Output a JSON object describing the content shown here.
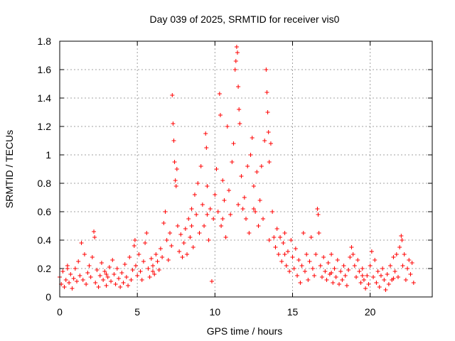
{
  "chart_data": {
    "type": "scatter",
    "title": "Day 039 of 2025, SRMTID for receiver vis0",
    "xlabel": "GPS time / hours",
    "ylabel": "SRMTID / TECUs",
    "xlim": [
      0,
      24
    ],
    "ylim": [
      0,
      1.8
    ],
    "xticks": [
      0,
      5,
      10,
      15,
      20
    ],
    "yticks": [
      0,
      0.2,
      0.4,
      0.6,
      0.8,
      1.0,
      1.2,
      1.4,
      1.6,
      1.8
    ],
    "xtick_labels": [
      "0",
      "5",
      "10",
      "15",
      "20"
    ],
    "ytick_labels": [
      "0",
      "0.2",
      "0.4",
      "0.6",
      "0.8",
      "1",
      "1.2",
      "1.4",
      "1.6",
      "1.8"
    ],
    "grid": true,
    "marker": "+",
    "color": "#ff0000",
    "series": [
      {
        "name": "SRMTID",
        "points": [
          [
            0.0,
            0.14
          ],
          [
            0.1,
            0.09
          ],
          [
            0.2,
            0.18
          ],
          [
            0.3,
            0.07
          ],
          [
            0.4,
            0.12
          ],
          [
            0.5,
            0.22
          ],
          [
            0.6,
            0.1
          ],
          [
            0.7,
            0.16
          ],
          [
            0.8,
            0.06
          ],
          [
            0.9,
            0.13
          ],
          [
            1.0,
            0.2
          ],
          [
            1.1,
            0.11
          ],
          [
            1.2,
            0.25
          ],
          [
            1.3,
            0.15
          ],
          [
            1.4,
            0.38
          ],
          [
            1.5,
            0.12
          ],
          [
            1.6,
            0.3
          ],
          [
            1.7,
            0.09
          ],
          [
            1.8,
            0.17
          ],
          [
            1.9,
            0.22
          ],
          [
            2.0,
            0.14
          ],
          [
            2.1,
            0.28
          ],
          [
            2.2,
            0.46
          ],
          [
            2.25,
            0.42
          ],
          [
            2.3,
            0.1
          ],
          [
            2.4,
            0.19
          ],
          [
            2.5,
            0.07
          ],
          [
            2.6,
            0.15
          ],
          [
            2.7,
            0.24
          ],
          [
            2.8,
            0.12
          ],
          [
            2.9,
            0.18
          ],
          [
            3.0,
            0.08
          ],
          [
            3.1,
            0.14
          ],
          [
            3.2,
            0.21
          ],
          [
            3.3,
            0.11
          ],
          [
            3.4,
            0.26
          ],
          [
            3.5,
            0.16
          ],
          [
            3.6,
            0.09
          ],
          [
            3.7,
            0.2
          ],
          [
            3.8,
            0.13
          ],
          [
            3.9,
            0.07
          ],
          [
            4.0,
            0.17
          ],
          [
            4.1,
            0.1
          ],
          [
            4.2,
            0.23
          ],
          [
            4.3,
            0.14
          ],
          [
            4.4,
            0.08
          ],
          [
            4.5,
            0.28
          ],
          [
            4.6,
            0.12
          ],
          [
            4.7,
            0.19
          ],
          [
            4.8,
            0.36
          ],
          [
            4.85,
            0.4
          ],
          [
            4.9,
            0.22
          ],
          [
            5.0,
            0.15
          ],
          [
            5.1,
            0.3
          ],
          [
            5.2,
            0.18
          ],
          [
            5.3,
            0.12
          ],
          [
            5.4,
            0.25
          ],
          [
            5.5,
            0.38
          ],
          [
            5.6,
            0.45
          ],
          [
            5.7,
            0.2
          ],
          [
            5.8,
            0.14
          ],
          [
            5.9,
            0.27
          ],
          [
            6.0,
            0.22
          ],
          [
            6.1,
            0.16
          ],
          [
            6.2,
            0.3
          ],
          [
            6.3,
            0.25
          ],
          [
            6.4,
            0.19
          ],
          [
            6.5,
            0.34
          ],
          [
            6.6,
            0.28
          ],
          [
            6.7,
            0.52
          ],
          [
            6.8,
            0.6
          ],
          [
            6.9,
            0.4
          ],
          [
            7.0,
            0.26
          ],
          [
            7.1,
            0.45
          ],
          [
            7.2,
            0.36
          ],
          [
            7.25,
            1.42
          ],
          [
            7.3,
            1.22
          ],
          [
            7.35,
            1.1
          ],
          [
            7.4,
            0.95
          ],
          [
            7.45,
            0.82
          ],
          [
            7.5,
            0.78
          ],
          [
            7.55,
            0.9
          ],
          [
            7.6,
            0.5
          ],
          [
            7.7,
            0.32
          ],
          [
            7.8,
            0.44
          ],
          [
            7.9,
            0.28
          ],
          [
            8.0,
            0.38
          ],
          [
            8.1,
            0.48
          ],
          [
            8.2,
            0.3
          ],
          [
            8.3,
            0.55
          ],
          [
            8.4,
            0.42
          ],
          [
            8.5,
            0.62
          ],
          [
            8.6,
            0.35
          ],
          [
            8.7,
            0.72
          ],
          [
            8.8,
            0.58
          ],
          [
            8.9,
            0.8
          ],
          [
            9.0,
            0.45
          ],
          [
            9.1,
            0.92
          ],
          [
            9.2,
            0.65
          ],
          [
            9.3,
            0.5
          ],
          [
            9.4,
            1.15
          ],
          [
            9.45,
            1.05
          ],
          [
            9.5,
            0.78
          ],
          [
            9.6,
            0.4
          ],
          [
            9.7,
            0.62
          ],
          [
            9.8,
            0.11
          ],
          [
            9.9,
            0.55
          ],
          [
            10.0,
            0.72
          ],
          [
            10.1,
            0.9
          ],
          [
            10.2,
            0.6
          ],
          [
            10.3,
            1.43
          ],
          [
            10.35,
            1.28
          ],
          [
            10.4,
            0.5
          ],
          [
            10.5,
            0.82
          ],
          [
            10.6,
            0.68
          ],
          [
            10.7,
            0.42
          ],
          [
            10.8,
            1.2
          ],
          [
            10.9,
            0.75
          ],
          [
            11.0,
            0.58
          ],
          [
            11.1,
            0.95
          ],
          [
            11.2,
            1.08
          ],
          [
            11.3,
            1.6
          ],
          [
            11.35,
            1.66
          ],
          [
            11.4,
            1.76
          ],
          [
            11.45,
            1.72
          ],
          [
            11.5,
            1.48
          ],
          [
            11.55,
            1.32
          ],
          [
            11.6,
            1.22
          ],
          [
            11.7,
            0.85
          ],
          [
            11.8,
            0.62
          ],
          [
            11.9,
            0.7
          ],
          [
            12.0,
            0.55
          ],
          [
            12.1,
            0.92
          ],
          [
            12.2,
            0.45
          ],
          [
            12.3,
            1.0
          ],
          [
            12.4,
            1.12
          ],
          [
            12.5,
            0.78
          ],
          [
            12.6,
            0.6
          ],
          [
            12.7,
            0.88
          ],
          [
            12.8,
            0.5
          ],
          [
            12.9,
            0.68
          ],
          [
            13.0,
            0.92
          ],
          [
            13.1,
            0.55
          ],
          [
            13.2,
            1.1
          ],
          [
            13.3,
            1.6
          ],
          [
            13.35,
            1.44
          ],
          [
            13.4,
            1.3
          ],
          [
            13.45,
            1.16
          ],
          [
            13.5,
            0.95
          ],
          [
            13.6,
            1.08
          ],
          [
            13.7,
            0.6
          ],
          [
            13.8,
            0.42
          ],
          [
            13.9,
            0.35
          ],
          [
            14.0,
            0.48
          ],
          [
            14.1,
            0.3
          ],
          [
            14.2,
            0.42
          ],
          [
            14.3,
            0.25
          ],
          [
            14.4,
            0.38
          ],
          [
            14.5,
            0.45
          ],
          [
            14.6,
            0.22
          ],
          [
            14.7,
            0.32
          ],
          [
            14.8,
            0.18
          ],
          [
            14.9,
            0.4
          ],
          [
            15.0,
            0.28
          ],
          [
            15.1,
            0.2
          ],
          [
            15.2,
            0.34
          ],
          [
            15.3,
            0.15
          ],
          [
            15.4,
            0.26
          ],
          [
            15.5,
            0.1
          ],
          [
            15.6,
            0.22
          ],
          [
            15.7,
            0.45
          ],
          [
            15.8,
            0.18
          ],
          [
            15.9,
            0.3
          ],
          [
            16.0,
            0.12
          ],
          [
            16.1,
            0.25
          ],
          [
            16.2,
            0.42
          ],
          [
            16.3,
            0.2
          ],
          [
            16.4,
            0.15
          ],
          [
            16.5,
            0.3
          ],
          [
            16.6,
            0.62
          ],
          [
            16.65,
            0.58
          ],
          [
            16.7,
            0.45
          ],
          [
            16.8,
            0.22
          ],
          [
            16.9,
            0.14
          ],
          [
            17.0,
            0.28
          ],
          [
            17.1,
            0.18
          ],
          [
            17.2,
            0.12
          ],
          [
            17.3,
            0.24
          ],
          [
            17.4,
            0.16
          ],
          [
            17.5,
            0.3
          ],
          [
            17.6,
            0.1
          ],
          [
            17.7,
            0.2
          ],
          [
            17.8,
            0.14
          ],
          [
            17.9,
            0.26
          ],
          [
            18.0,
            0.09
          ],
          [
            18.1,
            0.18
          ],
          [
            18.2,
            0.12
          ],
          [
            18.3,
            0.22
          ],
          [
            18.4,
            0.15
          ],
          [
            18.5,
            0.08
          ],
          [
            18.6,
            0.19
          ],
          [
            18.7,
            0.28
          ],
          [
            18.8,
            0.35
          ],
          [
            18.9,
            0.3
          ],
          [
            19.0,
            0.22
          ],
          [
            19.1,
            0.14
          ],
          [
            19.2,
            0.26
          ],
          [
            19.3,
            0.18
          ],
          [
            19.4,
            0.1
          ],
          [
            19.5,
            0.2
          ],
          [
            19.6,
            0.12
          ],
          [
            19.7,
            0.06
          ],
          [
            19.8,
            0.15
          ],
          [
            19.9,
            0.09
          ],
          [
            20.0,
            0.22
          ],
          [
            20.1,
            0.32
          ],
          [
            20.2,
            0.14
          ],
          [
            20.3,
            0.26
          ],
          [
            20.4,
            0.1
          ],
          [
            20.5,
            0.18
          ],
          [
            20.6,
            0.07
          ],
          [
            20.7,
            0.15
          ],
          [
            20.8,
            0.2
          ],
          [
            20.9,
            0.12
          ],
          [
            21.0,
            0.05
          ],
          [
            21.1,
            0.16
          ],
          [
            21.2,
            0.09
          ],
          [
            21.3,
            0.22
          ],
          [
            21.4,
            0.12
          ],
          [
            21.5,
            0.28
          ],
          [
            21.6,
            0.18
          ],
          [
            21.7,
            0.3
          ],
          [
            21.8,
            0.14
          ],
          [
            21.9,
            0.35
          ],
          [
            22.0,
            0.43
          ],
          [
            22.05,
            0.4
          ],
          [
            22.1,
            0.22
          ],
          [
            22.2,
            0.3
          ],
          [
            22.3,
            0.12
          ],
          [
            22.4,
            0.2
          ],
          [
            22.5,
            0.26
          ],
          [
            22.6,
            0.16
          ],
          [
            22.7,
            0.24
          ],
          [
            22.8,
            0.1
          ],
          [
            0.5,
            0.2
          ],
          [
            3.0,
            0.16
          ],
          [
            6.0,
            0.18
          ],
          [
            8.5,
            0.5
          ],
          [
            9.5,
            0.58
          ],
          [
            10.5,
            0.55
          ],
          [
            11.5,
            0.65
          ],
          [
            12.5,
            0.62
          ],
          [
            13.5,
            0.4
          ],
          [
            14.5,
            0.3
          ],
          [
            17.5,
            0.17
          ],
          [
            19.5,
            0.15
          ],
          [
            21.5,
            0.13
          ]
        ]
      }
    ]
  }
}
